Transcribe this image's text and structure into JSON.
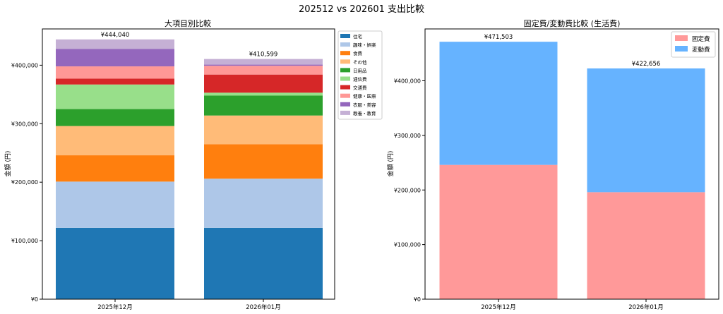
{
  "figure_title": "202512 vs 202601 支出比較",
  "chart_data": [
    {
      "type": "bar",
      "stacked": true,
      "title": "大項目別比較",
      "ylabel": "金額 (円)",
      "xlabel": "",
      "categories": [
        "2025年12月",
        "2026年01月"
      ],
      "ylim": [
        0,
        462000
      ],
      "yticks": [
        0,
        100000,
        200000,
        300000,
        400000
      ],
      "ytick_labels": [
        "¥0",
        "¥100,000",
        "¥200,000",
        "¥300,000",
        "¥400,000"
      ],
      "totals": [
        444040,
        410599
      ],
      "total_labels": [
        "¥444,040",
        "¥410,599"
      ],
      "legend_position": "outside-right",
      "series": [
        {
          "name": "住宅",
          "color": "#1f77b4",
          "values": [
            122000,
            122000
          ]
        },
        {
          "name": "趣味・娯楽",
          "color": "#aec7e8",
          "values": [
            79000,
            84000
          ]
        },
        {
          "name": "食費",
          "color": "#ff7f0e",
          "values": [
            45000,
            59000
          ]
        },
        {
          "name": "その他",
          "color": "#ffbb78",
          "values": [
            50000,
            49000
          ]
        },
        {
          "name": "日用品",
          "color": "#2ca02c",
          "values": [
            29000,
            34000
          ]
        },
        {
          "name": "通信費",
          "color": "#98df8a",
          "values": [
            42000,
            5000
          ]
        },
        {
          "name": "交通費",
          "color": "#d62728",
          "values": [
            10000,
            31000
          ]
        },
        {
          "name": "健康・医療",
          "color": "#ff9896",
          "values": [
            21000,
            15000
          ]
        },
        {
          "name": "衣服・美容",
          "color": "#9467bd",
          "values": [
            30000,
            2000
          ]
        },
        {
          "name": "教養・教育",
          "color": "#c5b0d5",
          "values": [
            16040,
            9599
          ]
        }
      ]
    },
    {
      "type": "bar",
      "stacked": true,
      "title": "固定費/変動費比較 (生活費)",
      "ylabel": "金額 (円)",
      "xlabel": "",
      "categories": [
        "2025年12月",
        "2026年01月"
      ],
      "ylim": [
        0,
        495000
      ],
      "yticks": [
        0,
        100000,
        200000,
        300000,
        400000
      ],
      "ytick_labels": [
        "¥0",
        "¥100,000",
        "¥200,000",
        "¥300,000",
        "¥400,000"
      ],
      "totals": [
        471503,
        422656
      ],
      "total_labels": [
        "¥471,503",
        "¥422,656"
      ],
      "legend_position": "top-right",
      "series": [
        {
          "name": "固定費",
          "color": "#ff9999",
          "values": [
            246000,
            196000
          ]
        },
        {
          "name": "変動費",
          "color": "#66b3ff",
          "values": [
            225503,
            226656
          ]
        }
      ]
    }
  ]
}
